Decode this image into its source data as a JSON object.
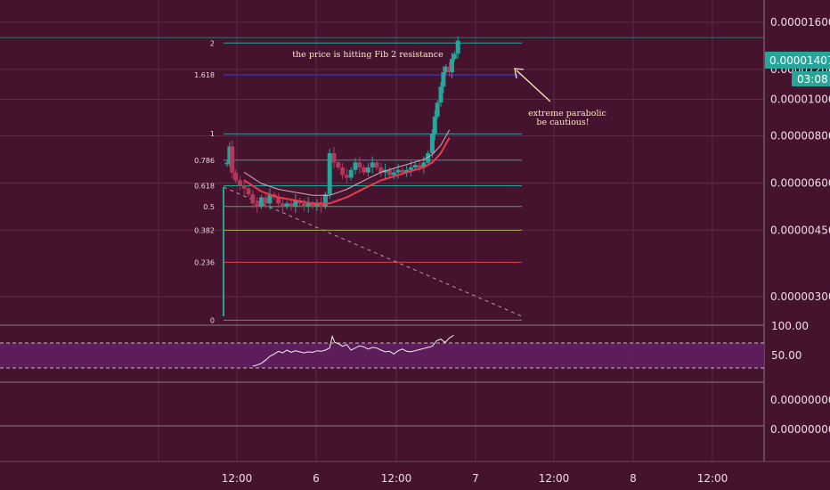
{
  "chart_data": {
    "type": "candlestick",
    "price_axis": {
      "scale": "log",
      "tick_labels": [
        "0.00001600",
        "0.00001200",
        "0.00001000",
        "0.00000800",
        "0.00000600",
        "0.00000450",
        "0.00000300"
      ],
      "tick_values": [
        1.6e-05,
        1.2e-05,
        1e-05,
        8e-06,
        6e-06,
        4.5e-06,
        3e-06
      ],
      "current_price_label": "0.00001407",
      "current_price": 1.407e-05,
      "countdown_label": "03:08",
      "accent_color": "#26a69a"
    },
    "time_axis": {
      "tick_labels": [
        "12:00",
        "6",
        "12:00",
        "7",
        "12:00",
        "8",
        "12:00"
      ]
    },
    "fib_levels": [
      {
        "label": "2",
        "price": 1.41e-05,
        "color": "#26a69a"
      },
      {
        "label": "1.618",
        "price": 1.16e-05,
        "color": "#3f40c8"
      },
      {
        "label": "1",
        "price": 8.1e-06,
        "color": "#26a69a"
      },
      {
        "label": "0.786",
        "price": 6.9e-06,
        "color": "#26a69a"
      },
      {
        "label": "0.618",
        "price": 5.9e-06,
        "color": "#26a69a"
      },
      {
        "label": "0.5",
        "price": 5.2e-06,
        "color": "#4caf50"
      },
      {
        "label": "0.382",
        "price": 4.5e-06,
        "color": "#a3b33a"
      },
      {
        "label": "0.236",
        "price": 3.7e-06,
        "color": "#e84040"
      },
      {
        "label": "0",
        "price": 2.6e-06,
        "color": "#26a69a"
      }
    ],
    "series": [
      {
        "kind": "price",
        "x": [
          0,
          0.3,
          0.6,
          1,
          1.5,
          2,
          2.5,
          3,
          3.5,
          4,
          4.5,
          5,
          5.5,
          6,
          6.5,
          7,
          7.5,
          8,
          8.5,
          9,
          9.5,
          10,
          10.5,
          11,
          11.5,
          12,
          12.5,
          13,
          13.5,
          14,
          14.5,
          15,
          15.5,
          16,
          16.5,
          17,
          17.5,
          18,
          18.5,
          19,
          19.5,
          20,
          20.5,
          21,
          21.5,
          22,
          22.5,
          23,
          23.5,
          24,
          24.3,
          24.6,
          25,
          25.3,
          25.6,
          26,
          26.3,
          26.6,
          27
        ],
        "y": [
          6.8e-06,
          7.5e-06,
          6.4e-06,
          6.1e-06,
          5.9e-06,
          5.8e-06,
          5.6e-06,
          5.3e-06,
          5.2e-06,
          5.5e-06,
          5.3e-06,
          5.6e-06,
          5.5e-06,
          5.3e-06,
          5.2e-06,
          5.3e-06,
          5.2e-06,
          5.4e-06,
          5.3e-06,
          5.2e-06,
          5.3e-06,
          5.2e-06,
          5.3e-06,
          5.2e-06,
          5.6e-06,
          7.2e-06,
          6.8e-06,
          6.6e-06,
          6.3e-06,
          6.2e-06,
          6.5e-06,
          6.8e-06,
          6.6e-06,
          6.4e-06,
          6.6e-06,
          6.8e-06,
          6.6e-06,
          6.4e-06,
          6.5e-06,
          6.3e-06,
          6.4e-06,
          6.5e-06,
          6.4e-06,
          6.5e-06,
          6.6e-06,
          6.7e-06,
          6.6e-06,
          6.8e-06,
          7.2e-06,
          8.1e-06,
          9e-06,
          9.8e-06,
          1.08e-05,
          1.18e-05,
          1.22e-05,
          1.18e-05,
          1.28e-05,
          1.32e-05,
          1.43e-05
        ]
      },
      {
        "kind": "ma",
        "color": "#e83b4e",
        "x": [
          2,
          4,
          6,
          8,
          10,
          12,
          14,
          16,
          18,
          20,
          22,
          23,
          24,
          25,
          26
        ],
        "y": [
          6.1e-06,
          5.7e-06,
          5.5e-06,
          5.4e-06,
          5.3e-06,
          5.3e-06,
          5.5e-06,
          5.8e-06,
          6.1e-06,
          6.3e-06,
          6.5e-06,
          6.6e-06,
          6.8e-06,
          7.2e-06,
          7.9e-06
        ]
      },
      {
        "kind": "rsi",
        "x": [
          3,
          3.5,
          4,
          4.5,
          5,
          5.5,
          6,
          6.5,
          7,
          7.5,
          8,
          8.5,
          9,
          9.5,
          10,
          10.5,
          11,
          11.5,
          12,
          12.3,
          12.6,
          13,
          13.5,
          14,
          14.5,
          15,
          15.5,
          16,
          16.5,
          17,
          17.5,
          18,
          18.5,
          19,
          19.5,
          20,
          20.5,
          21,
          21.5,
          22,
          22.5,
          23,
          23.5,
          24,
          24.5,
          25,
          25.5,
          26,
          26.5
        ],
        "y": [
          29,
          31,
          34,
          40,
          47,
          51,
          56,
          53,
          58,
          54,
          57,
          55,
          53,
          55,
          54,
          57,
          56,
          58,
          62,
          83,
          72,
          70,
          65,
          68,
          58,
          62,
          66,
          64,
          60,
          63,
          62,
          58,
          55,
          56,
          51,
          57,
          60,
          56,
          55,
          57,
          59,
          61,
          63,
          65,
          75,
          78,
          72,
          80,
          85
        ]
      }
    ],
    "rsi_axis": {
      "tick_labels": [
        "100.00",
        "50.00"
      ],
      "band_upper": 70,
      "band_lower": 30
    },
    "extra_axis_labels": [
      "0.00000000",
      "0.00000000"
    ],
    "annotations": [
      "the price is hitting Fib 2 resistance",
      "extreme parabolic",
      "be cautious!"
    ]
  }
}
